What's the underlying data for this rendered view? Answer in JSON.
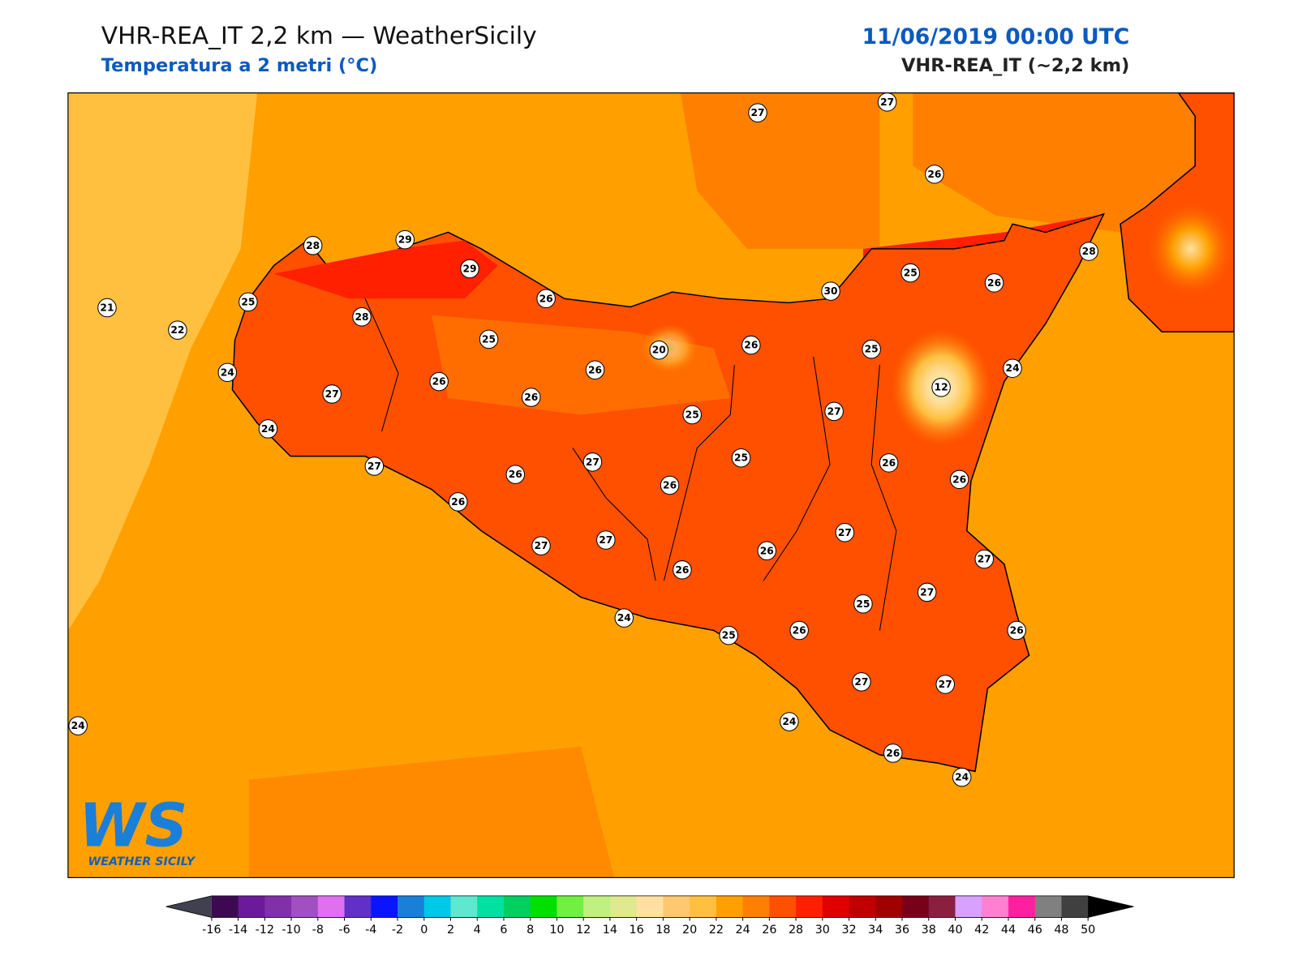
{
  "header": {
    "title": "VHR-REA_IT 2,2 km — WeatherSicily",
    "subtitle": "Temperatura a 2 metri (°C)",
    "datetime": "11/06/2019 00:00 UTC",
    "model": "VHR-REA_IT (~2,2 km)"
  },
  "map": {
    "stations": [
      27,
      27,
      26,
      28,
      29,
      29,
      26,
      25,
      21,
      22,
      28,
      25,
      24,
      27,
      26,
      26,
      26,
      20,
      26,
      25,
      12,
      24,
      25,
      30,
      26,
      28,
      24,
      27,
      26,
      27,
      25,
      25,
      27,
      26,
      26,
      26,
      26,
      27,
      27,
      26,
      26,
      27,
      27,
      27,
      25,
      26,
      24,
      25,
      26,
      27,
      27,
      24,
      26,
      24,
      24
    ]
  },
  "colorbar": {
    "ticks": [
      -16,
      -14,
      -12,
      -10,
      -8,
      -6,
      -4,
      -2,
      0,
      2,
      4,
      6,
      8,
      10,
      12,
      14,
      16,
      18,
      20,
      22,
      24,
      26,
      28,
      30,
      32,
      34,
      36,
      38,
      40,
      42,
      44,
      46,
      48,
      50
    ],
    "colors": [
      "#3d0a52",
      "#6a1a9a",
      "#8030a8",
      "#a050c0",
      "#e070f0",
      "#6030c8",
      "#0a14ff",
      "#1a7fd8",
      "#00c8e8",
      "#5ee8d0",
      "#00e0a0",
      "#00d060",
      "#00e000",
      "#70f040",
      "#c0f080",
      "#e0e890",
      "#ffe0a0",
      "#ffc870",
      "#ffc040",
      "#ffa000",
      "#ff8000",
      "#ff5000",
      "#ff2000",
      "#e00000",
      "#c00000",
      "#a00000",
      "#780018",
      "#8a1f40",
      "#d8a0ff",
      "#ff80d0",
      "#ff20a0",
      "#808080",
      "#404040"
    ],
    "under_color": "#404050",
    "over_color": "#000000"
  },
  "logo": {
    "mark": "WS",
    "text": "WEATHER SICILY"
  }
}
